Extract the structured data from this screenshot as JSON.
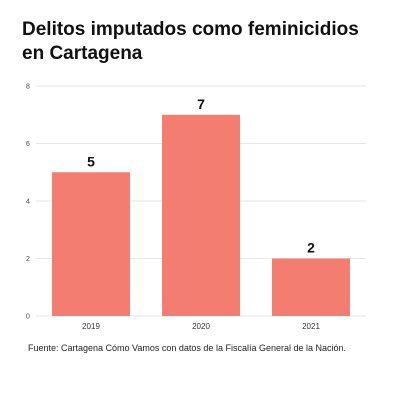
{
  "chart_data": {
    "type": "bar",
    "title": "Delitos imputados como feminicidios en Cartagena",
    "categories": [
      "2019",
      "2020",
      "2021"
    ],
    "values": [
      5,
      7,
      2
    ],
    "data_labels": [
      "5",
      "7",
      "2"
    ],
    "y_ticks": [
      0,
      2,
      4,
      6,
      8
    ],
    "ylim": [
      0,
      8
    ],
    "xlabel": "",
    "ylabel": "",
    "grid": true,
    "legend": "none",
    "bar_color": "#f47d71",
    "grid_color": "#e6e6e6"
  },
  "source": "Fuente: Cartagena Cómo Vamos con datos de la Fiscalía General de la Nación."
}
